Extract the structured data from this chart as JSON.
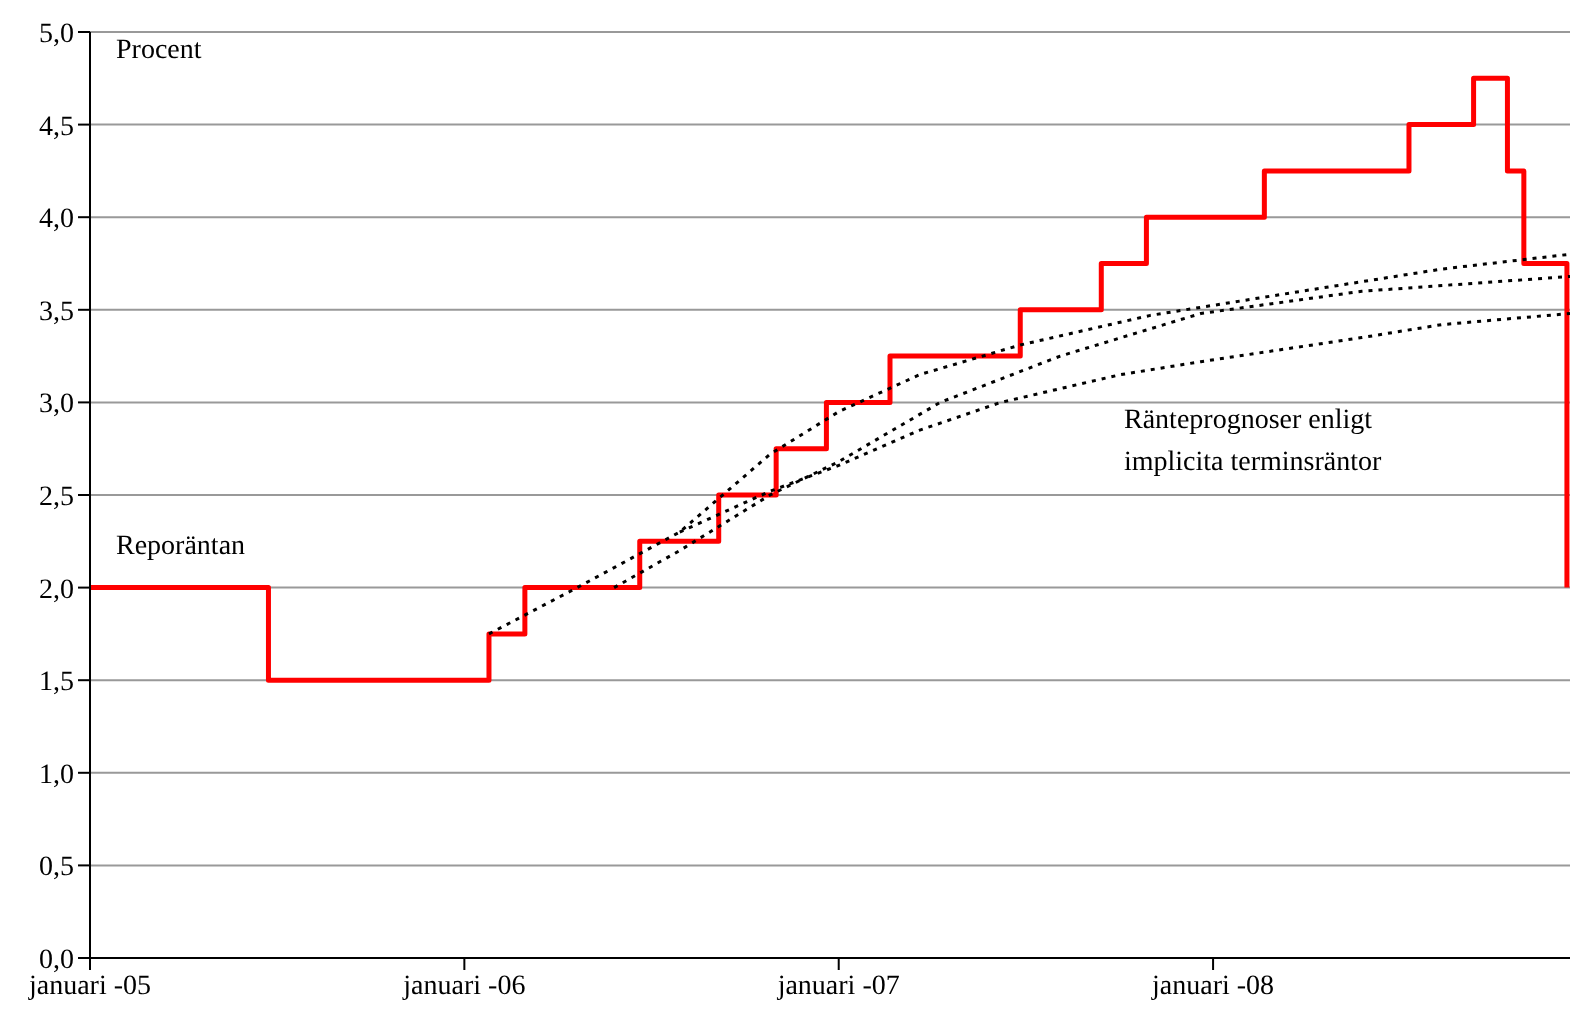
{
  "chart_data": {
    "type": "line",
    "ylabel": "Procent",
    "annotations": [
      "Ränteprognoser enligt implicita terminsräntor"
    ],
    "xlim": [
      "2005-01-01",
      "2008-12-14"
    ],
    "xticks": [
      {
        "value": "2005-01-01",
        "label": "januari -05"
      },
      {
        "value": "2006-01-01",
        "label": "januari -06"
      },
      {
        "value": "2007-01-01",
        "label": "januari -07"
      },
      {
        "value": "2008-01-01",
        "label": "januari -08"
      }
    ],
    "ylim": [
      0,
      5
    ],
    "yticks": [
      {
        "value": 0,
        "label": "0,0"
      },
      {
        "value": 0.5,
        "label": "0,5"
      },
      {
        "value": 1,
        "label": "1,0"
      },
      {
        "value": 1.5,
        "label": "1,5"
      },
      {
        "value": 2,
        "label": "2,0"
      },
      {
        "value": 2.5,
        "label": "2,5"
      },
      {
        "value": 3,
        "label": "3,0"
      },
      {
        "value": 3.5,
        "label": "3,5"
      },
      {
        "value": 4,
        "label": "4,0"
      },
      {
        "value": 4.5,
        "label": "4,5"
      },
      {
        "value": 5,
        "label": "5,0"
      }
    ],
    "grid": "y",
    "marker": "none",
    "legend": false,
    "series": [
      {
        "name": "Reporäntan",
        "type": "step",
        "color": "#ff0000",
        "line_style": "solid",
        "x": [
          "2005-01-01",
          "2005-06-24",
          "2006-01-25",
          "2006-03-01",
          "2006-06-21",
          "2006-09-06",
          "2006-11-01",
          "2006-12-20",
          "2007-02-20",
          "2007-06-27",
          "2007-09-14",
          "2007-10-28",
          "2008-02-20",
          "2008-07-10",
          "2008-09-11",
          "2008-10-14",
          "2008-10-30",
          "2008-12-11"
        ],
        "values": [
          2.0,
          1.5,
          1.75,
          2.0,
          2.25,
          2.5,
          2.75,
          3.0,
          3.25,
          3.5,
          3.75,
          4.0,
          4.25,
          4.5,
          4.75,
          4.25,
          3.75,
          2.0
        ]
      },
      {
        "type": "line",
        "color": "#000000",
        "line_style": "dotted",
        "x": [
          "2006-01-25",
          "2006-04-21",
          "2006-07-30",
          "2006-10-26",
          "2007-01-01",
          "2007-03-21",
          "2007-06-27",
          "2007-11-01",
          "2008-03-27",
          "2008-08-11",
          "2008-10-28",
          "2008-12-14"
        ],
        "values": [
          1.75,
          2.0,
          2.3,
          2.72,
          2.95,
          3.15,
          3.31,
          3.47,
          3.6,
          3.72,
          3.77,
          3.8
        ]
      },
      {
        "type": "line",
        "color": "#000000",
        "line_style": "dotted",
        "x": [
          "2006-05-27",
          "2006-07-30",
          "2006-10-26",
          "2007-01-01",
          "2007-04-10",
          "2007-08-05",
          "2007-12-20",
          "2008-05-25",
          "2008-12-14"
        ],
        "values": [
          2.0,
          2.2,
          2.5,
          2.68,
          3.0,
          3.25,
          3.48,
          3.6,
          3.68
        ]
      },
      {
        "type": "line",
        "color": "#000000",
        "line_style": "dotted",
        "x": [
          "2006-07-30",
          "2006-10-26",
          "2007-01-01",
          "2007-03-21",
          "2007-06-08",
          "2007-10-03",
          "2007-12-20",
          "2008-05-25",
          "2008-08-11",
          "2008-12-14"
        ],
        "values": [
          2.3,
          2.52,
          2.66,
          2.85,
          3.0,
          3.15,
          3.22,
          3.35,
          3.42,
          3.48
        ]
      }
    ]
  }
}
